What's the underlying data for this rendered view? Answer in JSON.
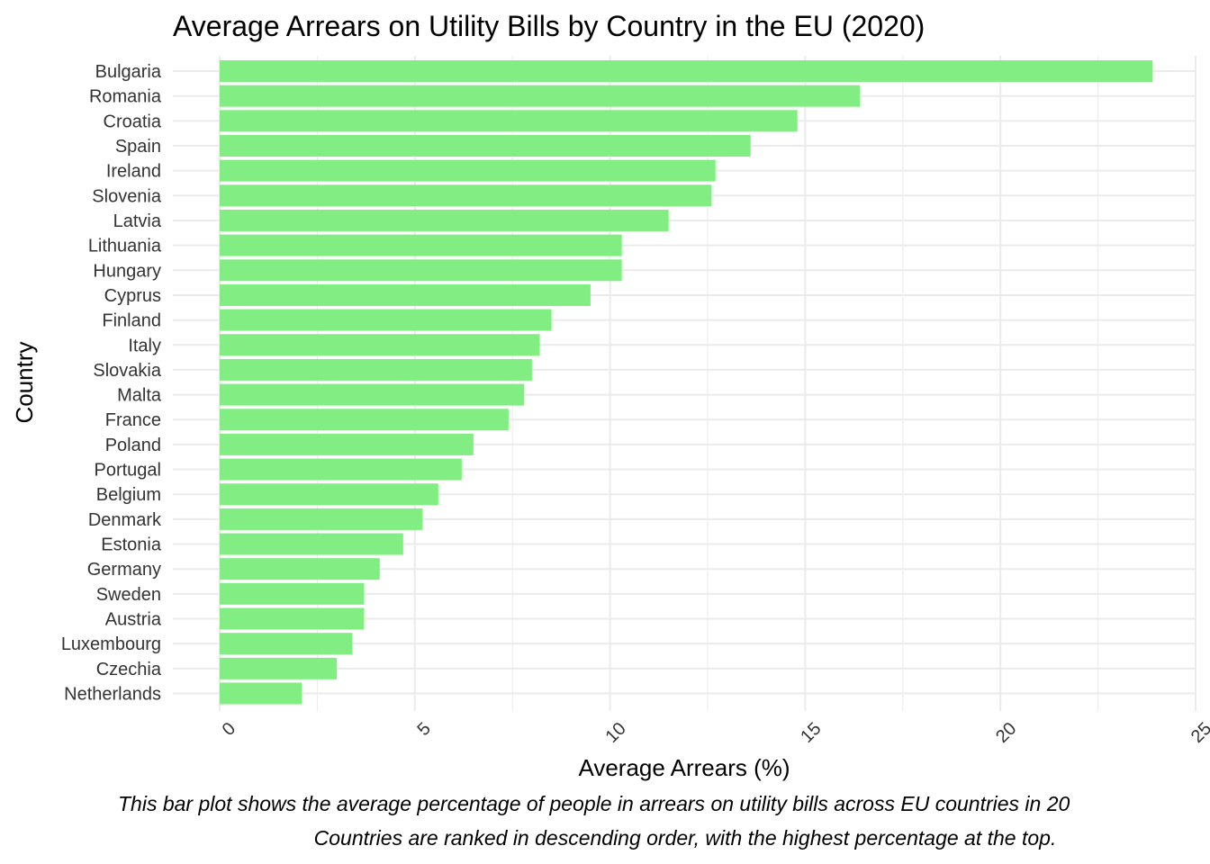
{
  "chart_data": {
    "type": "bar",
    "orientation": "horizontal",
    "title": "Average Arrears on Utility Bills by Country in the EU (2020)",
    "xlabel": "Average Arrears (%)",
    "ylabel": "Country",
    "caption_lines": [
      "This bar plot shows the average percentage of people in arrears on utility bills across EU countries in 20",
      "Countries are ranked in descending order, with the highest percentage at the top."
    ],
    "categories": [
      "Bulgaria",
      "Romania",
      "Croatia",
      "Spain",
      "Ireland",
      "Slovenia",
      "Latvia",
      "Lithuania",
      "Hungary",
      "Cyprus",
      "Finland",
      "Italy",
      "Slovakia",
      "Malta",
      "France",
      "Poland",
      "Portugal",
      "Belgium",
      "Denmark",
      "Estonia",
      "Germany",
      "Sweden",
      "Austria",
      "Luxembourg",
      "Czechia",
      "Netherlands"
    ],
    "values": [
      23.9,
      16.4,
      14.8,
      13.6,
      12.7,
      12.6,
      11.5,
      10.3,
      10.3,
      9.5,
      8.5,
      8.2,
      8.0,
      7.8,
      7.4,
      6.5,
      6.2,
      5.6,
      5.2,
      4.7,
      4.1,
      3.7,
      3.7,
      3.4,
      3.0,
      2.1
    ],
    "xlim": [
      0,
      25
    ],
    "xticks": [
      "0",
      "5",
      "10",
      "15",
      "20",
      "25"
    ],
    "grid": true,
    "bar_color": "#82ED82",
    "grid_color": "#EBEBEB",
    "legend": "none"
  }
}
